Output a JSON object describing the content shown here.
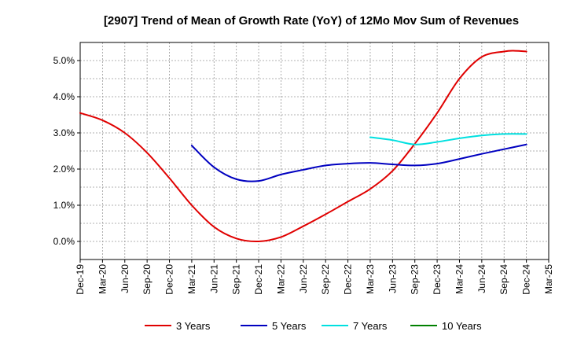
{
  "chart_data": {
    "type": "line",
    "title": "[2907]  Trend of Mean of Growth Rate (YoY) of 12Mo Mov Sum of Revenues",
    "xlabel": "",
    "ylabel": "",
    "ylim": [
      -0.5,
      5.5
    ],
    "yticks": [
      0,
      1,
      2,
      3,
      4,
      5
    ],
    "ytick_labels": [
      "0.0%",
      "1.0%",
      "2.0%",
      "3.0%",
      "4.0%",
      "5.0%"
    ],
    "x_tick_labels": [
      "Dec-19",
      "Mar-20",
      "Jun-20",
      "Sep-20",
      "Dec-20",
      "Mar-21",
      "Jun-21",
      "Sep-21",
      "Dec-21",
      "Mar-22",
      "Jun-22",
      "Sep-22",
      "Dec-22",
      "Mar-23",
      "Jun-23",
      "Sep-23",
      "Dec-23",
      "Mar-24",
      "Jun-24",
      "Sep-24",
      "Dec-24",
      "Mar-25"
    ],
    "grid": true,
    "legend_position": "bottom",
    "series": [
      {
        "name": "3 Years",
        "color": "#e00000",
        "points": [
          [
            0,
            3.55
          ],
          [
            1,
            3.35
          ],
          [
            2,
            3.0
          ],
          [
            3,
            2.45
          ],
          [
            4,
            1.75
          ],
          [
            5,
            1.0
          ],
          [
            6,
            0.4
          ],
          [
            7,
            0.08
          ],
          [
            8,
            0.0
          ],
          [
            9,
            0.12
          ],
          [
            10,
            0.42
          ],
          [
            11,
            0.75
          ],
          [
            12,
            1.1
          ],
          [
            13,
            1.45
          ],
          [
            14,
            1.95
          ],
          [
            15,
            2.7
          ],
          [
            16,
            3.55
          ],
          [
            17,
            4.5
          ],
          [
            18,
            5.1
          ],
          [
            19,
            5.25
          ],
          [
            19.5,
            5.27
          ],
          [
            20,
            5.25
          ]
        ]
      },
      {
        "name": "5 Years",
        "color": "#0000c0",
        "points": [
          [
            5,
            2.65
          ],
          [
            6,
            2.05
          ],
          [
            7,
            1.72
          ],
          [
            8,
            1.67
          ],
          [
            9,
            1.85
          ],
          [
            10,
            1.98
          ],
          [
            11,
            2.1
          ],
          [
            12,
            2.15
          ],
          [
            13,
            2.17
          ],
          [
            14,
            2.13
          ],
          [
            15,
            2.1
          ],
          [
            16,
            2.15
          ],
          [
            17,
            2.28
          ],
          [
            18,
            2.42
          ],
          [
            19,
            2.55
          ],
          [
            20,
            2.68
          ]
        ]
      },
      {
        "name": "7 Years",
        "color": "#00e0e0",
        "points": [
          [
            13,
            2.88
          ],
          [
            14,
            2.8
          ],
          [
            15,
            2.68
          ],
          [
            16,
            2.75
          ],
          [
            17,
            2.85
          ],
          [
            18,
            2.93
          ],
          [
            19,
            2.97
          ],
          [
            20,
            2.97
          ]
        ]
      },
      {
        "name": "10 Years",
        "color": "#008000",
        "points": []
      }
    ]
  }
}
